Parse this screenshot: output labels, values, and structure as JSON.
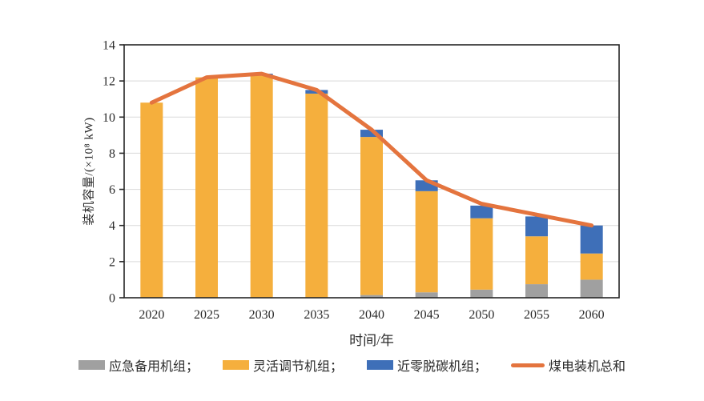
{
  "chart_data": {
    "type": "bar",
    "stacked": true,
    "categories": [
      "2020",
      "2025",
      "2030",
      "2035",
      "2040",
      "2045",
      "2050",
      "2055",
      "2060"
    ],
    "series": [
      {
        "name": "应急备用机组",
        "color": "#A0A0A0",
        "values": [
          0,
          0,
          0,
          0,
          0.15,
          0.3,
          0.45,
          0.75,
          1.0
        ]
      },
      {
        "name": "灵活调节机组",
        "color": "#F5AF3D",
        "values": [
          10.8,
          12.2,
          12.3,
          11.3,
          8.75,
          5.6,
          3.95,
          2.65,
          1.45
        ]
      },
      {
        "name": "近零脱碳机组",
        "color": "#3E6FB8",
        "values": [
          0,
          0,
          0.1,
          0.2,
          0.4,
          0.6,
          0.7,
          1.1,
          1.55
        ]
      }
    ],
    "line_series": {
      "name": "煤电装机总和",
      "color": "#E4743E",
      "values": [
        10.8,
        12.2,
        12.4,
        11.5,
        9.3,
        6.5,
        5.2,
        4.6,
        4.0
      ]
    },
    "totals": [
      10.8,
      12.2,
      12.4,
      11.5,
      9.3,
      6.5,
      5.1,
      4.5,
      4.0
    ],
    "xlabel": "时间/年",
    "ylabel": "装机容量/(×10⁸ kW)",
    "ylim": [
      0,
      14
    ],
    "ytick_step": 2,
    "yticks": [
      0,
      2,
      4,
      6,
      8,
      10,
      12,
      14
    ],
    "grid": true,
    "gridcolor": "#D9D9D9",
    "axis_color": "#262626",
    "legend_position": "bottom"
  },
  "legend": {
    "items": [
      "应急备用机组；",
      "灵活调节机组；",
      "近零脱碳机组；",
      "煤电装机总和"
    ]
  }
}
